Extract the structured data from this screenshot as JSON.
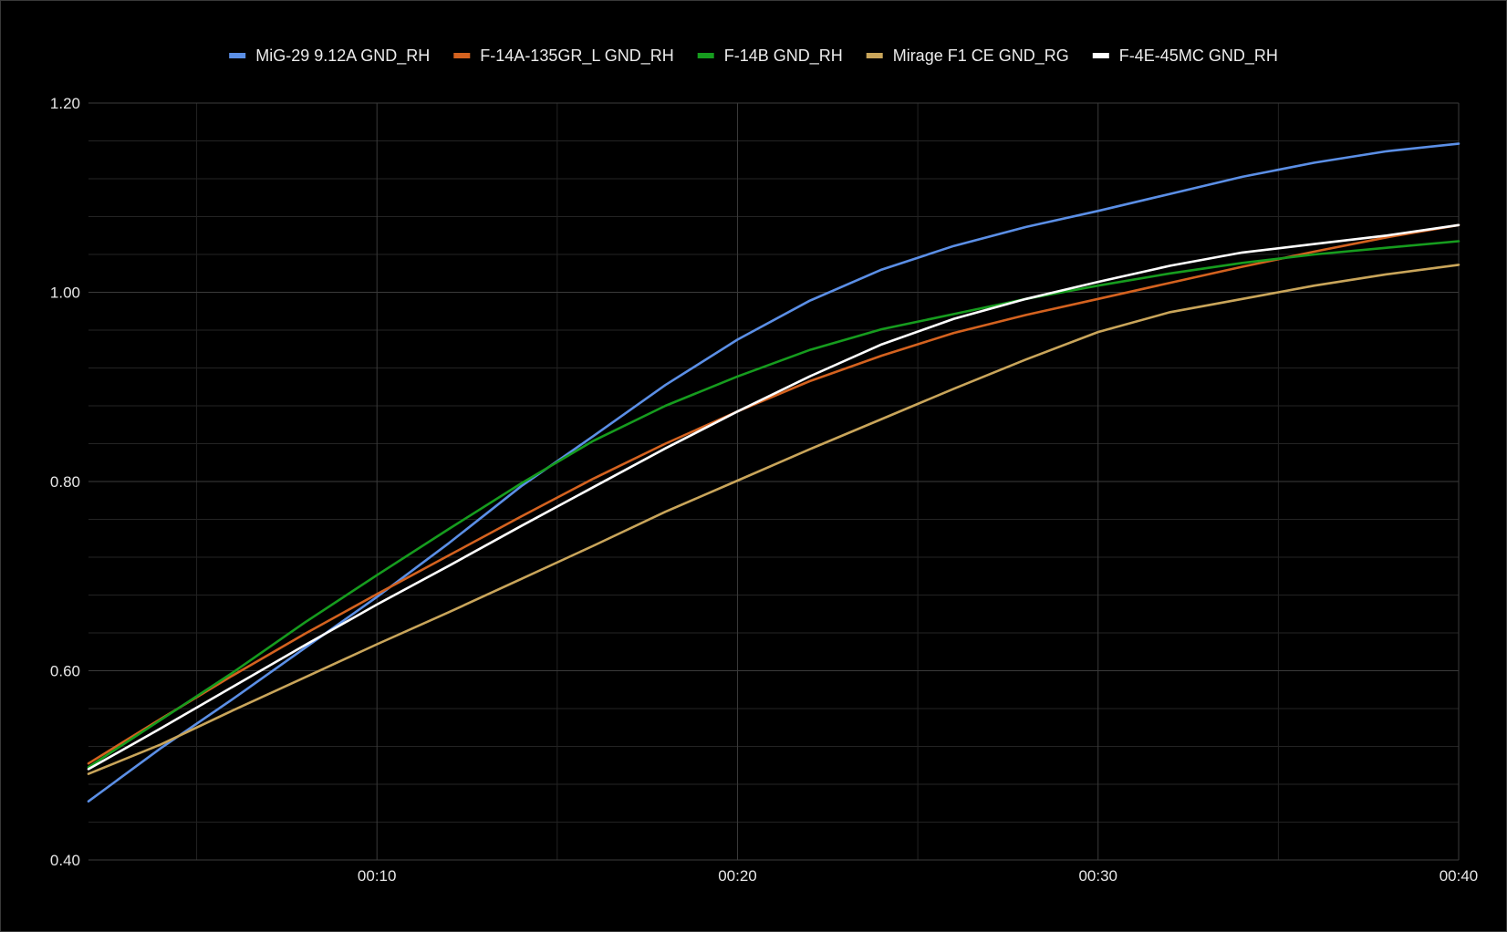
{
  "chart_data": {
    "type": "line",
    "title": "",
    "xlabel": "",
    "ylabel": "",
    "x": [
      "00:02",
      "00:04",
      "00:06",
      "00:08",
      "00:10",
      "00:12",
      "00:14",
      "00:16",
      "00:18",
      "00:20",
      "00:22",
      "00:24",
      "00:26",
      "00:28",
      "00:30",
      "00:32",
      "00:34",
      "00:36",
      "00:38",
      "00:40"
    ],
    "x_tick_labels": [
      "00:10",
      "00:20",
      "00:30",
      "00:40"
    ],
    "y_tick_labels": [
      "0.40",
      "0.60",
      "0.80",
      "1.00",
      "1.20"
    ],
    "xlim": [
      "00:02",
      "00:40"
    ],
    "ylim": [
      0.4,
      1.2
    ],
    "grid": true,
    "legend_position": "top",
    "series": [
      {
        "name": "MiG-29 9.12A GND_RH",
        "color": "#5b8fe6",
        "values": [
          0.462,
          0.518,
          0.57,
          0.624,
          0.678,
          0.735,
          0.795,
          0.848,
          0.902,
          0.95,
          0.991,
          1.024,
          1.049,
          1.069,
          1.086,
          1.104,
          1.122,
          1.137,
          1.149,
          1.157
        ]
      },
      {
        "name": "F-14A-135GR_L GND_RH",
        "color": "#d4621f",
        "values": [
          0.502,
          0.549,
          0.595,
          0.639,
          0.681,
          0.722,
          0.763,
          0.803,
          0.84,
          0.874,
          0.906,
          0.933,
          0.957,
          0.976,
          0.993,
          1.01,
          1.027,
          1.043,
          1.058,
          1.071
        ]
      },
      {
        "name": "F-14B GND_RH",
        "color": "#169c1e",
        "values": [
          0.498,
          0.548,
          0.598,
          0.651,
          0.701,
          0.75,
          0.798,
          0.843,
          0.88,
          0.911,
          0.939,
          0.961,
          0.977,
          0.993,
          1.007,
          1.02,
          1.031,
          1.04,
          1.047,
          1.054
        ]
      },
      {
        "name": "Mirage F1 CE GND_RG",
        "color": "#c9a55a",
        "values": [
          0.491,
          0.522,
          0.558,
          0.593,
          0.628,
          0.662,
          0.697,
          0.732,
          0.768,
          0.801,
          0.834,
          0.866,
          0.898,
          0.929,
          0.958,
          0.979,
          0.993,
          1.007,
          1.019,
          1.029
        ]
      },
      {
        "name": "F-4E-45MC GND_RH",
        "color": "#ffffff",
        "values": [
          0.496,
          0.539,
          0.583,
          0.627,
          0.67,
          0.711,
          0.753,
          0.794,
          0.835,
          0.874,
          0.911,
          0.945,
          0.972,
          0.993,
          1.011,
          1.028,
          1.042,
          1.051,
          1.06,
          1.071
        ]
      }
    ],
    "colors": {
      "background": "#000000",
      "grid_major": "#3b3b3b",
      "grid_minor": "#232323",
      "text": "#e6e6e6"
    }
  }
}
